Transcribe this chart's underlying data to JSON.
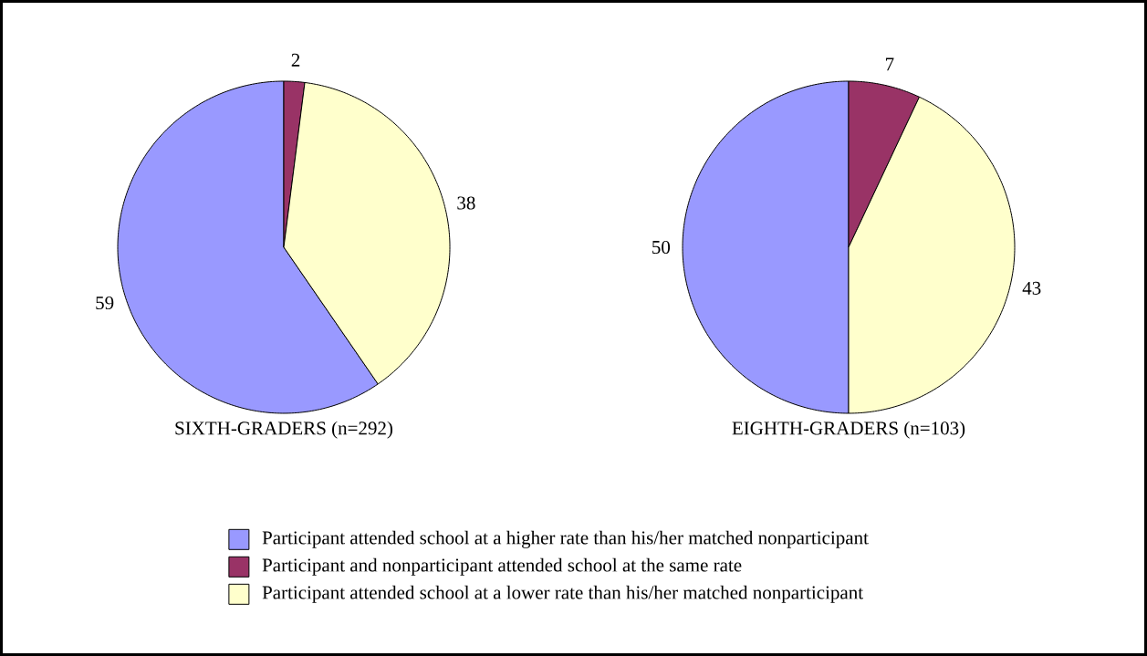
{
  "chart_data": [
    {
      "type": "pie",
      "title": "SIXTH-GRADERS (n=292)",
      "categories": [
        "Participant attended school at a higher rate than his/her matched nonparticipant",
        "Participant and nonparticipant attended school at the same rate",
        "Participant attended school at a lower rate than his/her matched nonparticipant"
      ],
      "values": [
        59,
        2,
        38
      ],
      "colors": [
        "#9999ff",
        "#993366",
        "#ffffcc"
      ],
      "data_labels": true,
      "legend": "bottom"
    },
    {
      "type": "pie",
      "title": "EIGHTH-GRADERS (n=103)",
      "categories": [
        null,
        null,
        null
      ],
      "values": [
        50,
        7,
        43
      ],
      "colors": [
        "#9999ff",
        "#993366",
        "#ffffcc"
      ],
      "data_labels": true
    }
  ]
}
